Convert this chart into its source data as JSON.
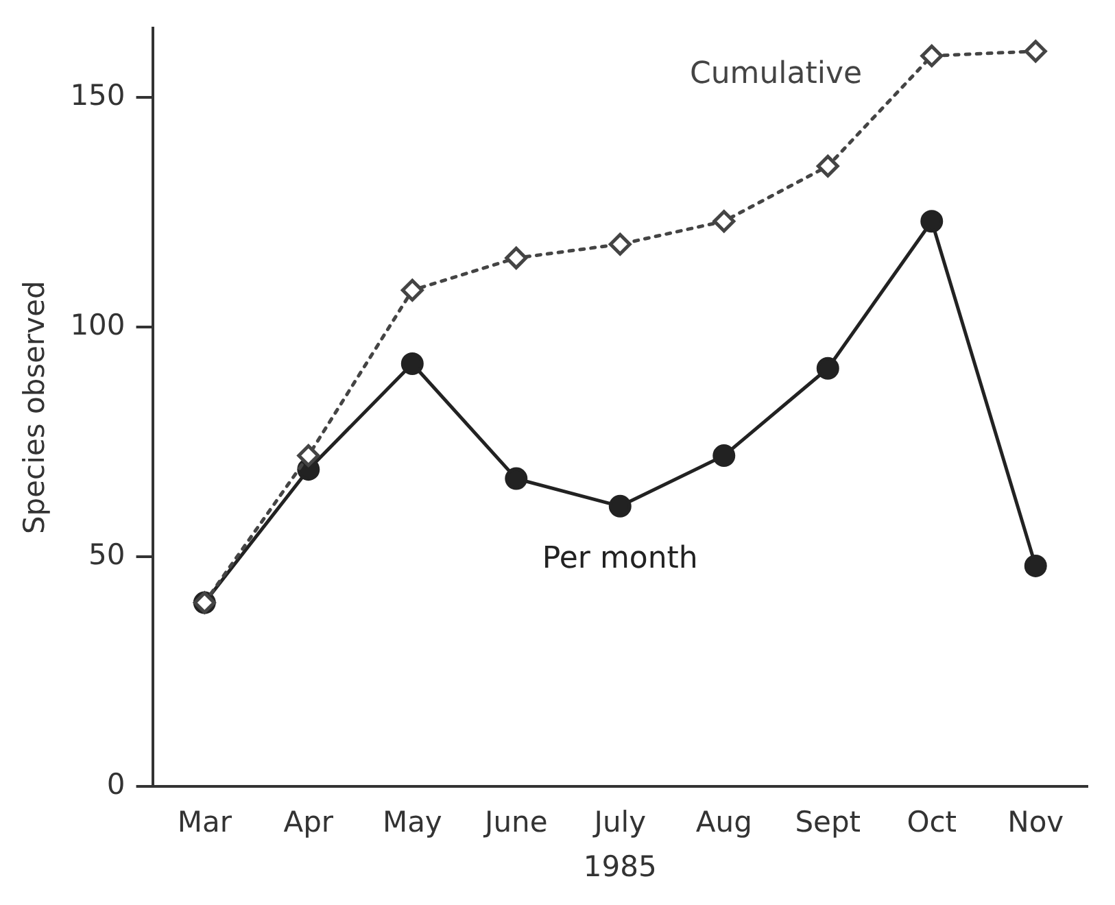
{
  "chart_data": {
    "type": "line",
    "xlabel": "1985",
    "ylabel": "Species observed",
    "categories": [
      "Mar",
      "Apr",
      "May",
      "June",
      "July",
      "Aug",
      "Sept",
      "Oct",
      "Nov"
    ],
    "series": [
      {
        "name": "Cumulative",
        "color": "#444444",
        "marker": "diamond",
        "line_style": "dotted",
        "values": [
          40,
          72,
          108,
          115,
          118,
          123,
          135,
          159,
          160
        ]
      },
      {
        "name": "Per month",
        "color": "#222222",
        "marker": "circle",
        "line_style": "solid",
        "values": [
          40,
          69,
          92,
          67,
          61,
          72,
          91,
          123,
          48
        ]
      }
    ],
    "ylim": [
      0,
      165
    ],
    "yticks": [
      0,
      50,
      100,
      150
    ],
    "grid": false,
    "legend": false
  }
}
